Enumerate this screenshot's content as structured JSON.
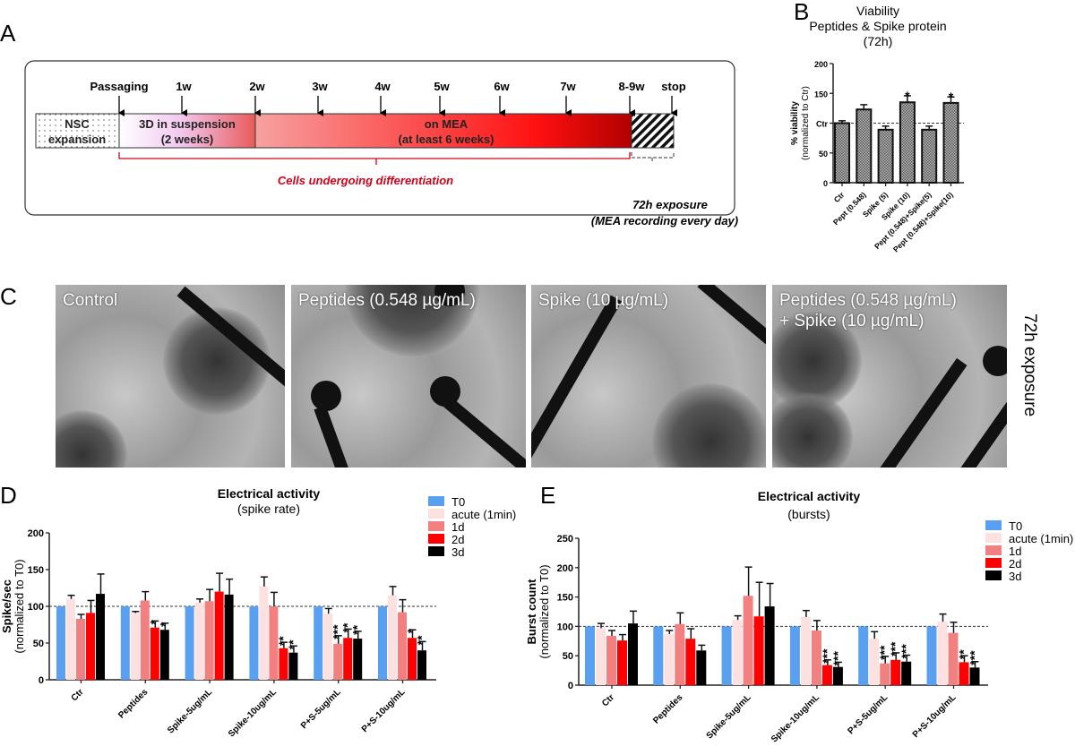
{
  "panel_labels": {
    "a": "A",
    "b": "B",
    "c": "C",
    "d": "D",
    "e": "E"
  },
  "panel_a": {
    "stages": {
      "nsc": [
        "NSC",
        "expansion"
      ],
      "suspension": [
        "3D in suspension",
        "(2 weeks)"
      ],
      "mea": [
        "on MEA",
        "(at least 6 weeks)"
      ]
    },
    "timepoints": [
      "Passaging",
      "1w",
      "2w",
      "3w",
      "4w",
      "5w",
      "6w",
      "7w",
      "8-9w",
      "stop"
    ],
    "differentiation_label": "Cells undergoing  differentiation",
    "exposure_label": [
      "72h exposure",
      "(MEA recording every day)"
    ],
    "colors": {
      "bracket": "#d0021b",
      "mea_start": "#f7a1a1",
      "mea_end": "#c00000",
      "suspension_end": "#e85a5a"
    }
  },
  "panel_c": {
    "images": [
      "Control",
      "Peptides (0.548 µg/mL)",
      "Spike (10 µg/mL)",
      "Peptides (0.548 µg/mL)\n+ Spike (10 µg/mL)"
    ],
    "side_label": "72h exposure"
  },
  "chart_data": [
    {
      "id": "B",
      "type": "bar",
      "title": [
        "Viability",
        "Peptides & Spike protein",
        "(72h)"
      ],
      "ylabel": [
        "% viability",
        "(normalized to Ctr)"
      ],
      "ylim": [
        0,
        200
      ],
      "yticks": [
        0,
        50,
        100,
        150,
        200
      ],
      "ytick_labels": [
        "0",
        "50",
        "Ctr",
        "150",
        "200"
      ],
      "reference_line": 100,
      "categories": [
        "Ctr",
        "Pept (0.548)",
        "Spike (5)",
        "Spike (10)",
        "Pept (0.548)+Spike(5)",
        "Pept (0.548)+Spike(10)"
      ],
      "values": [
        100,
        123,
        89,
        135,
        89,
        134
      ],
      "errors": [
        4,
        8,
        6,
        11,
        6,
        10
      ],
      "significance": [
        "",
        "",
        "",
        "*",
        "",
        "*"
      ],
      "fill": "checkered gray"
    },
    {
      "id": "D",
      "type": "bar",
      "title": [
        "Electrical activity",
        "(spike rate)"
      ],
      "ylabel": [
        "Spike/sec",
        "(normalized to T0)"
      ],
      "ylim": [
        0,
        200
      ],
      "yticks": [
        0,
        50,
        100,
        150,
        200
      ],
      "ytick_labels": [
        "0",
        "50",
        "100",
        "150",
        "200"
      ],
      "reference_line": 100,
      "categories": [
        "Ctr",
        "Peptides",
        "Spike-5ug/mL",
        "Spike-10ug/mL",
        "P+S-5ug/mL",
        "P+S-10ug/mL"
      ],
      "series": [
        {
          "name": "T0",
          "color": "#5aa0f0",
          "values": [
            100,
            100,
            100,
            100,
            100,
            100
          ],
          "errors": [
            0,
            0,
            0,
            0,
            0,
            0
          ],
          "significance": [
            "",
            "",
            "",
            "",
            "",
            ""
          ]
        },
        {
          "name": "acute (1min)",
          "color": "#fde0e0",
          "values": [
            110,
            91,
            105,
            127,
            90,
            115
          ],
          "errors": [
            5,
            2,
            5,
            13,
            7,
            12
          ],
          "significance": [
            "",
            "",
            "",
            "",
            "",
            ""
          ]
        },
        {
          "name": "1d",
          "color": "#f28080",
          "values": [
            83,
            108,
            107,
            100,
            49,
            92
          ],
          "errors": [
            6,
            12,
            16,
            19,
            11,
            17
          ],
          "significance": [
            "",
            "",
            "",
            "",
            "***",
            ""
          ]
        },
        {
          "name": "2d",
          "color": "#ff0000",
          "values": [
            91,
            71,
            120,
            43,
            57,
            57
          ],
          "errors": [
            17,
            9,
            25,
            8,
            12,
            11
          ],
          "significance": [
            "",
            "*",
            "",
            "**",
            "**",
            "*"
          ]
        },
        {
          "name": "3d",
          "color": "#000000",
          "values": [
            117,
            68,
            116,
            37,
            56,
            40
          ],
          "errors": [
            27,
            9,
            21,
            9,
            10,
            12
          ],
          "significance": [
            "",
            "*",
            "",
            "**",
            "**",
            "**"
          ]
        }
      ]
    },
    {
      "id": "E",
      "type": "bar",
      "title": [
        "Electrical activity",
        "(bursts)"
      ],
      "ylabel": [
        "Burst count",
        "(normalized to T0)"
      ],
      "ylim": [
        0,
        250
      ],
      "yticks": [
        0,
        50,
        100,
        150,
        200,
        250
      ],
      "ytick_labels": [
        "0",
        "50",
        "100",
        "150",
        "200",
        "250"
      ],
      "reference_line": 100,
      "categories": [
        "Ctr",
        "Peptides",
        "Spike-5ug/mL",
        "Spike-10ug/mL",
        "P+S-5ug/mL",
        "P+S-10ug/mL"
      ],
      "series": [
        {
          "name": "T0",
          "color": "#5aa0f0",
          "values": [
            100,
            100,
            100,
            100,
            100,
            100
          ],
          "errors": [
            0,
            0,
            0,
            0,
            0,
            0
          ],
          "significance": [
            "",
            "",
            "",
            "",
            "",
            ""
          ]
        },
        {
          "name": "acute (1min)",
          "color": "#fde0e0",
          "values": [
            97,
            87,
            111,
            116,
            79,
            108
          ],
          "errors": [
            8,
            6,
            7,
            11,
            12,
            13
          ],
          "significance": [
            "",
            "",
            "",
            "",
            "",
            ""
          ]
        },
        {
          "name": "1d",
          "color": "#f28080",
          "values": [
            84,
            104,
            152,
            93,
            37,
            89
          ],
          "errors": [
            9,
            19,
            49,
            17,
            12,
            18
          ],
          "significance": [
            "",
            "",
            "",
            "",
            "***",
            ""
          ]
        },
        {
          "name": "2d",
          "color": "#ff0000",
          "values": [
            76,
            79,
            117,
            34,
            43,
            39
          ],
          "errors": [
            10,
            17,
            58,
            9,
            12,
            11
          ],
          "significance": [
            "",
            "",
            "",
            "***",
            "***",
            "**"
          ]
        },
        {
          "name": "3d",
          "color": "#000000",
          "values": [
            105,
            59,
            134,
            31,
            40,
            30
          ],
          "errors": [
            21,
            9,
            39,
            8,
            11,
            10
          ],
          "significance": [
            "",
            "",
            "",
            "***",
            "***",
            "***"
          ]
        }
      ]
    }
  ]
}
